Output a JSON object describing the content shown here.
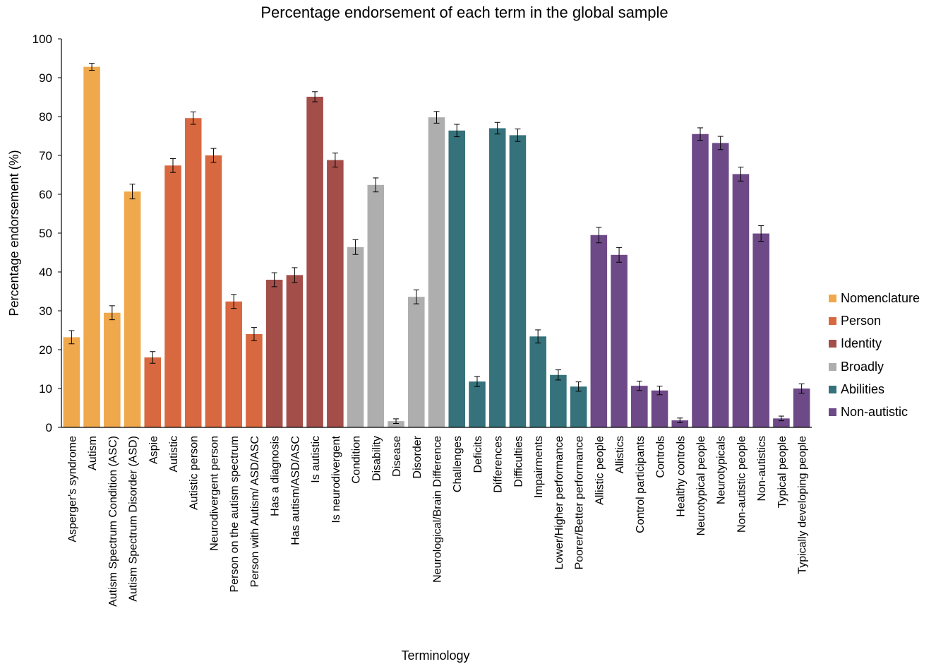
{
  "chart_data": {
    "type": "bar",
    "title": "Percentage endorsement of each term in the global sample",
    "xlabel": "Terminology",
    "ylabel": "Percentage endorsement (%)",
    "ylim": [
      0,
      100
    ],
    "yticks": [
      "0",
      "10",
      "20",
      "30",
      "40",
      "50",
      "60",
      "70",
      "80",
      "90",
      "100"
    ],
    "legend_position": "right",
    "groups": [
      {
        "name": "Nomenclature",
        "color": "#F0A84C"
      },
      {
        "name": "Person",
        "color": "#D8683F"
      },
      {
        "name": "Identity",
        "color": "#A44E4A"
      },
      {
        "name": "Broadly",
        "color": "#AEAEAE"
      },
      {
        "name": "Abilities",
        "color": "#35727B"
      },
      {
        "name": "Non-autistic",
        "color": "#6D4A87"
      }
    ],
    "categories": [
      "Asperger's syndrome",
      "Autism",
      "Autism Spectrum Condition (ASC)",
      "Autism Spectrum Disorder (ASD)",
      "Aspie",
      "Autistic",
      "Autistic person",
      "Neurodivergent person",
      "Person on the autism spectrum",
      "Person with Autism/ ASD/ASC",
      "Has a diagnosis",
      "Has autism/ASD/ASC",
      "Is autistic",
      "Is neurodivergent",
      "Condition",
      "Disability",
      "Disease",
      "Disorder",
      "Neurological/Brain Difference",
      "Challenges",
      "Deficits",
      "Differences",
      "Difficulties",
      "Impairments",
      "Lower/Higher performance",
      "Poorer/Better performance",
      "Allistic people",
      "Allistics",
      "Control participants",
      "Controls",
      "Healthy controls",
      "Neurotypical people",
      "Neurotypicals",
      "Non-autistic people",
      "Non-autistics",
      "Typical people",
      "Typically developing people"
    ],
    "category_group": [
      0,
      0,
      0,
      0,
      1,
      1,
      1,
      1,
      1,
      1,
      2,
      2,
      2,
      2,
      3,
      3,
      3,
      3,
      3,
      4,
      4,
      4,
      4,
      4,
      4,
      4,
      5,
      5,
      5,
      5,
      5,
      5,
      5,
      5,
      5,
      5,
      5
    ],
    "values": [
      23.2,
      92.8,
      29.5,
      60.7,
      18.0,
      67.4,
      79.6,
      70.0,
      32.4,
      24.0,
      38.0,
      39.2,
      85.1,
      68.8,
      46.4,
      62.4,
      1.6,
      33.6,
      79.8,
      76.4,
      11.8,
      77.0,
      75.2,
      23.4,
      13.5,
      10.5,
      49.5,
      44.4,
      10.7,
      9.5,
      1.8,
      75.5,
      73.2,
      65.2,
      49.9,
      2.3,
      10.0
    ],
    "errors": [
      1.7,
      0.9,
      1.8,
      1.9,
      1.5,
      1.8,
      1.6,
      1.8,
      1.8,
      1.7,
      1.8,
      1.9,
      1.3,
      1.8,
      1.9,
      1.8,
      0.6,
      1.8,
      1.5,
      1.6,
      1.3,
      1.5,
      1.6,
      1.7,
      1.3,
      1.2,
      2.0,
      1.9,
      1.2,
      1.1,
      0.6,
      1.6,
      1.7,
      1.8,
      2.0,
      0.6,
      1.2
    ]
  }
}
